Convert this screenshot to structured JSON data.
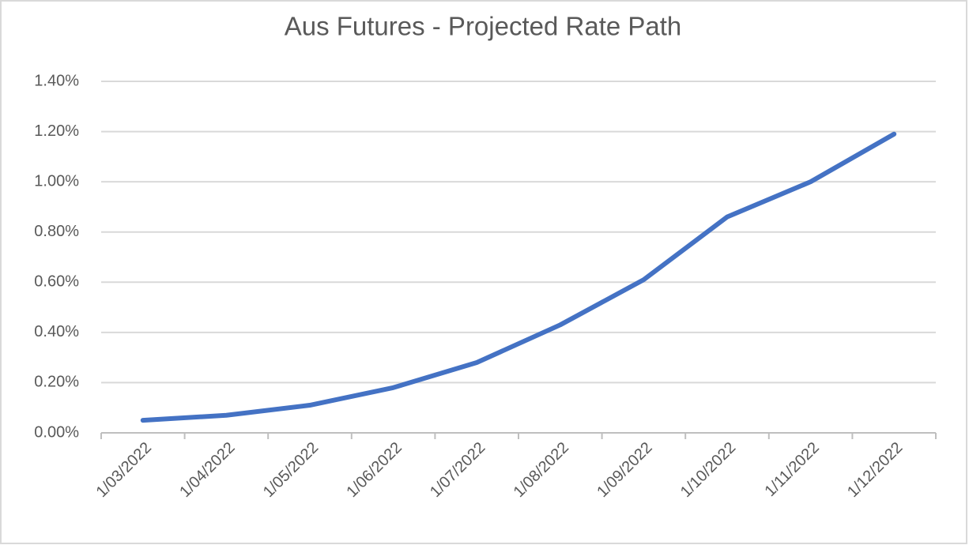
{
  "chart_data": {
    "type": "line",
    "title": "Aus Futures - Projected Rate Path",
    "categories": [
      "1/03/2022",
      "1/04/2022",
      "1/05/2022",
      "1/06/2022",
      "1/07/2022",
      "1/08/2022",
      "1/09/2022",
      "1/10/2022",
      "1/11/2022",
      "1/12/2022"
    ],
    "values": [
      0.05,
      0.07,
      0.11,
      0.18,
      0.28,
      0.43,
      0.61,
      0.86,
      1.0,
      1.19
    ],
    "color": "#4472c4",
    "ylim": [
      0,
      1.4
    ],
    "yticks": [
      {
        "value": 0,
        "label": "0.00%"
      },
      {
        "value": 0.2,
        "label": "0.20%"
      },
      {
        "value": 0.4,
        "label": "0.40%"
      },
      {
        "value": 0.6,
        "label": "0.60%"
      },
      {
        "value": 0.8,
        "label": "0.80%"
      },
      {
        "value": 1.0,
        "label": "1.00%"
      },
      {
        "value": 1.2,
        "label": "1.20%"
      },
      {
        "value": 1.4,
        "label": "1.40%"
      }
    ],
    "grid": true
  }
}
